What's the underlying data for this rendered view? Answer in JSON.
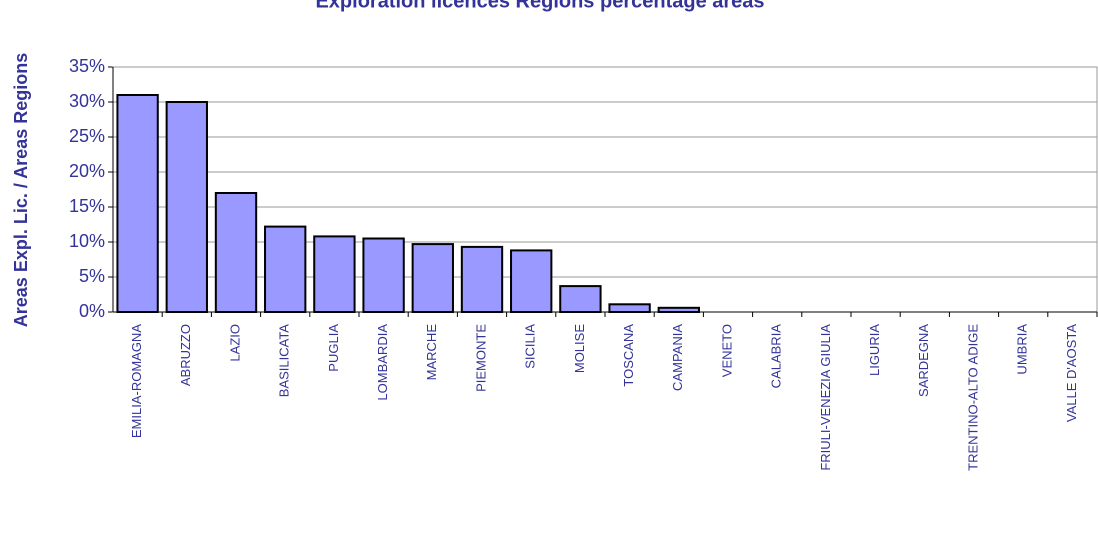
{
  "chart_data": {
    "type": "bar",
    "title": "Exploration licences Regions percentage areas",
    "y_label": "Areas Expl. Lic. / Areas Regions",
    "categories": [
      "EMILIA-ROMAGNA",
      "ABRUZZO",
      "LAZIO",
      "BASILICATA",
      "PUGLIA",
      "LOMBARDIA",
      "MARCHE",
      "PIEMONTE",
      "SICILIA",
      "MOLISE",
      "TOSCANA",
      "CAMPANIA",
      "VENETO",
      "CALABRIA",
      "FRIULI-VENEZIA GIULIA",
      "LIGURIA",
      "SARDEGNA",
      "TRENTINO-ALTO ADIGE",
      "UMBRIA",
      "VALLE D'AOSTA"
    ],
    "values": [
      31,
      30,
      17,
      12.2,
      10.8,
      10.5,
      9.7,
      9.3,
      8.8,
      3.7,
      1.1,
      0.6,
      0,
      0,
      0,
      0,
      0,
      0,
      0,
      0
    ],
    "color": "#9999ff",
    "ylim": [
      0,
      35
    ],
    "yticks": [
      {
        "value": 0,
        "label": "0%"
      },
      {
        "value": 5,
        "label": "5%"
      },
      {
        "value": 10,
        "label": "10%"
      },
      {
        "value": 15,
        "label": "15%"
      },
      {
        "value": 20,
        "label": "20%"
      },
      {
        "value": 25,
        "label": "25%"
      },
      {
        "value": 30,
        "label": "30%"
      },
      {
        "value": 35,
        "label": "35%"
      }
    ],
    "grid": true
  }
}
